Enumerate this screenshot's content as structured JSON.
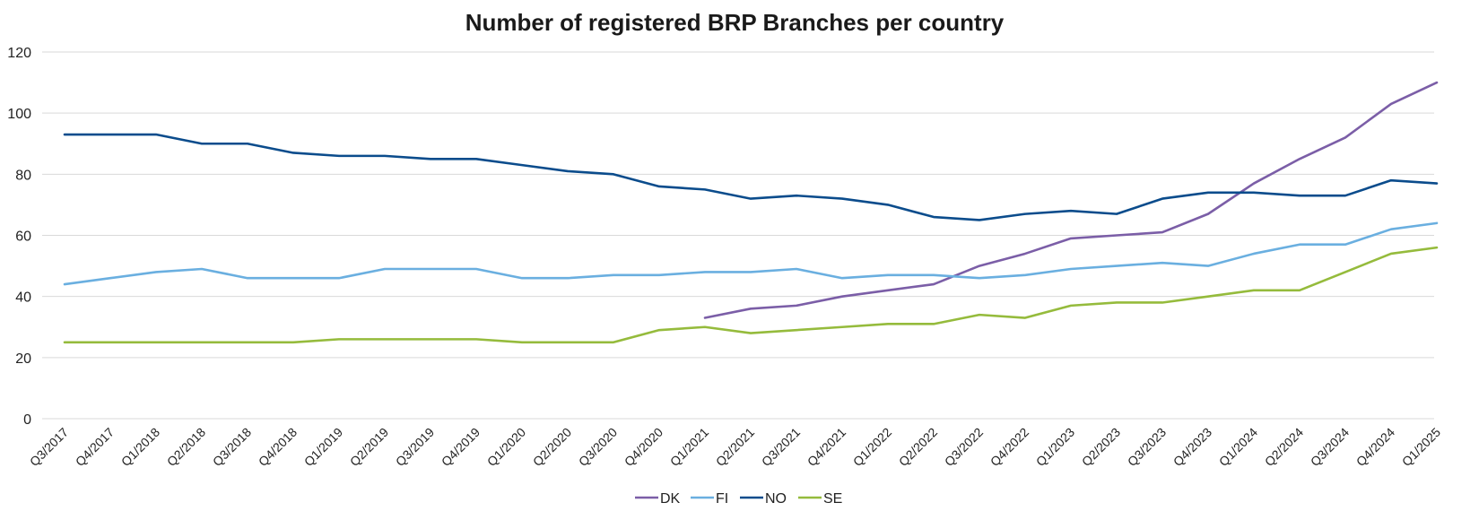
{
  "chart_data": {
    "type": "line",
    "title": "Number of registered BRP Branches per country",
    "xlabel": "",
    "ylabel": "",
    "ylim": [
      0,
      120
    ],
    "yticks": [
      0,
      20,
      40,
      60,
      80,
      100,
      120
    ],
    "grid": true,
    "legend_position": "bottom",
    "categories": [
      "Q3/2017",
      "Q4/2017",
      "Q1/2018",
      "Q2/2018",
      "Q3/2018",
      "Q4/2018",
      "Q1/2019",
      "Q2/2019",
      "Q3/2019",
      "Q4/2019",
      "Q1/2020",
      "Q2/2020",
      "Q3/2020",
      "Q4/2020",
      "Q1/2021",
      "Q2/2021",
      "Q3/2021",
      "Q4/2021",
      "Q1/2022",
      "Q2/2022",
      "Q3/2022",
      "Q4/2022",
      "Q1/2023",
      "Q2/2023",
      "Q3/2023",
      "Q4/2023",
      "Q1/2024",
      "Q2/2024",
      "Q3/2024",
      "Q4/2024",
      "Q1/2025"
    ],
    "series": [
      {
        "name": "DK",
        "color": "#7b5ea7",
        "values": [
          null,
          null,
          null,
          null,
          null,
          null,
          null,
          null,
          null,
          null,
          null,
          null,
          null,
          null,
          33,
          36,
          37,
          40,
          42,
          44,
          50,
          54,
          59,
          60,
          61,
          67,
          77,
          85,
          92,
          103,
          110
        ]
      },
      {
        "name": "FI",
        "color": "#6aafe0",
        "values": [
          44,
          46,
          48,
          49,
          46,
          46,
          46,
          49,
          49,
          49,
          46,
          46,
          47,
          47,
          48,
          48,
          49,
          46,
          47,
          47,
          46,
          47,
          49,
          50,
          51,
          50,
          54,
          57,
          57,
          62,
          64
        ]
      },
      {
        "name": "NO",
        "color": "#0b4c8c",
        "values": [
          93,
          93,
          93,
          90,
          90,
          87,
          86,
          86,
          85,
          85,
          83,
          81,
          80,
          76,
          75,
          72,
          73,
          72,
          70,
          66,
          65,
          67,
          68,
          67,
          72,
          74,
          74,
          73,
          73,
          78,
          77
        ]
      },
      {
        "name": "SE",
        "color": "#95bb3c",
        "values": [
          25,
          25,
          25,
          25,
          25,
          25,
          26,
          26,
          26,
          26,
          25,
          25,
          25,
          29,
          30,
          28,
          29,
          30,
          31,
          31,
          34,
          33,
          37,
          38,
          38,
          40,
          42,
          42,
          48,
          54,
          56
        ]
      }
    ]
  }
}
